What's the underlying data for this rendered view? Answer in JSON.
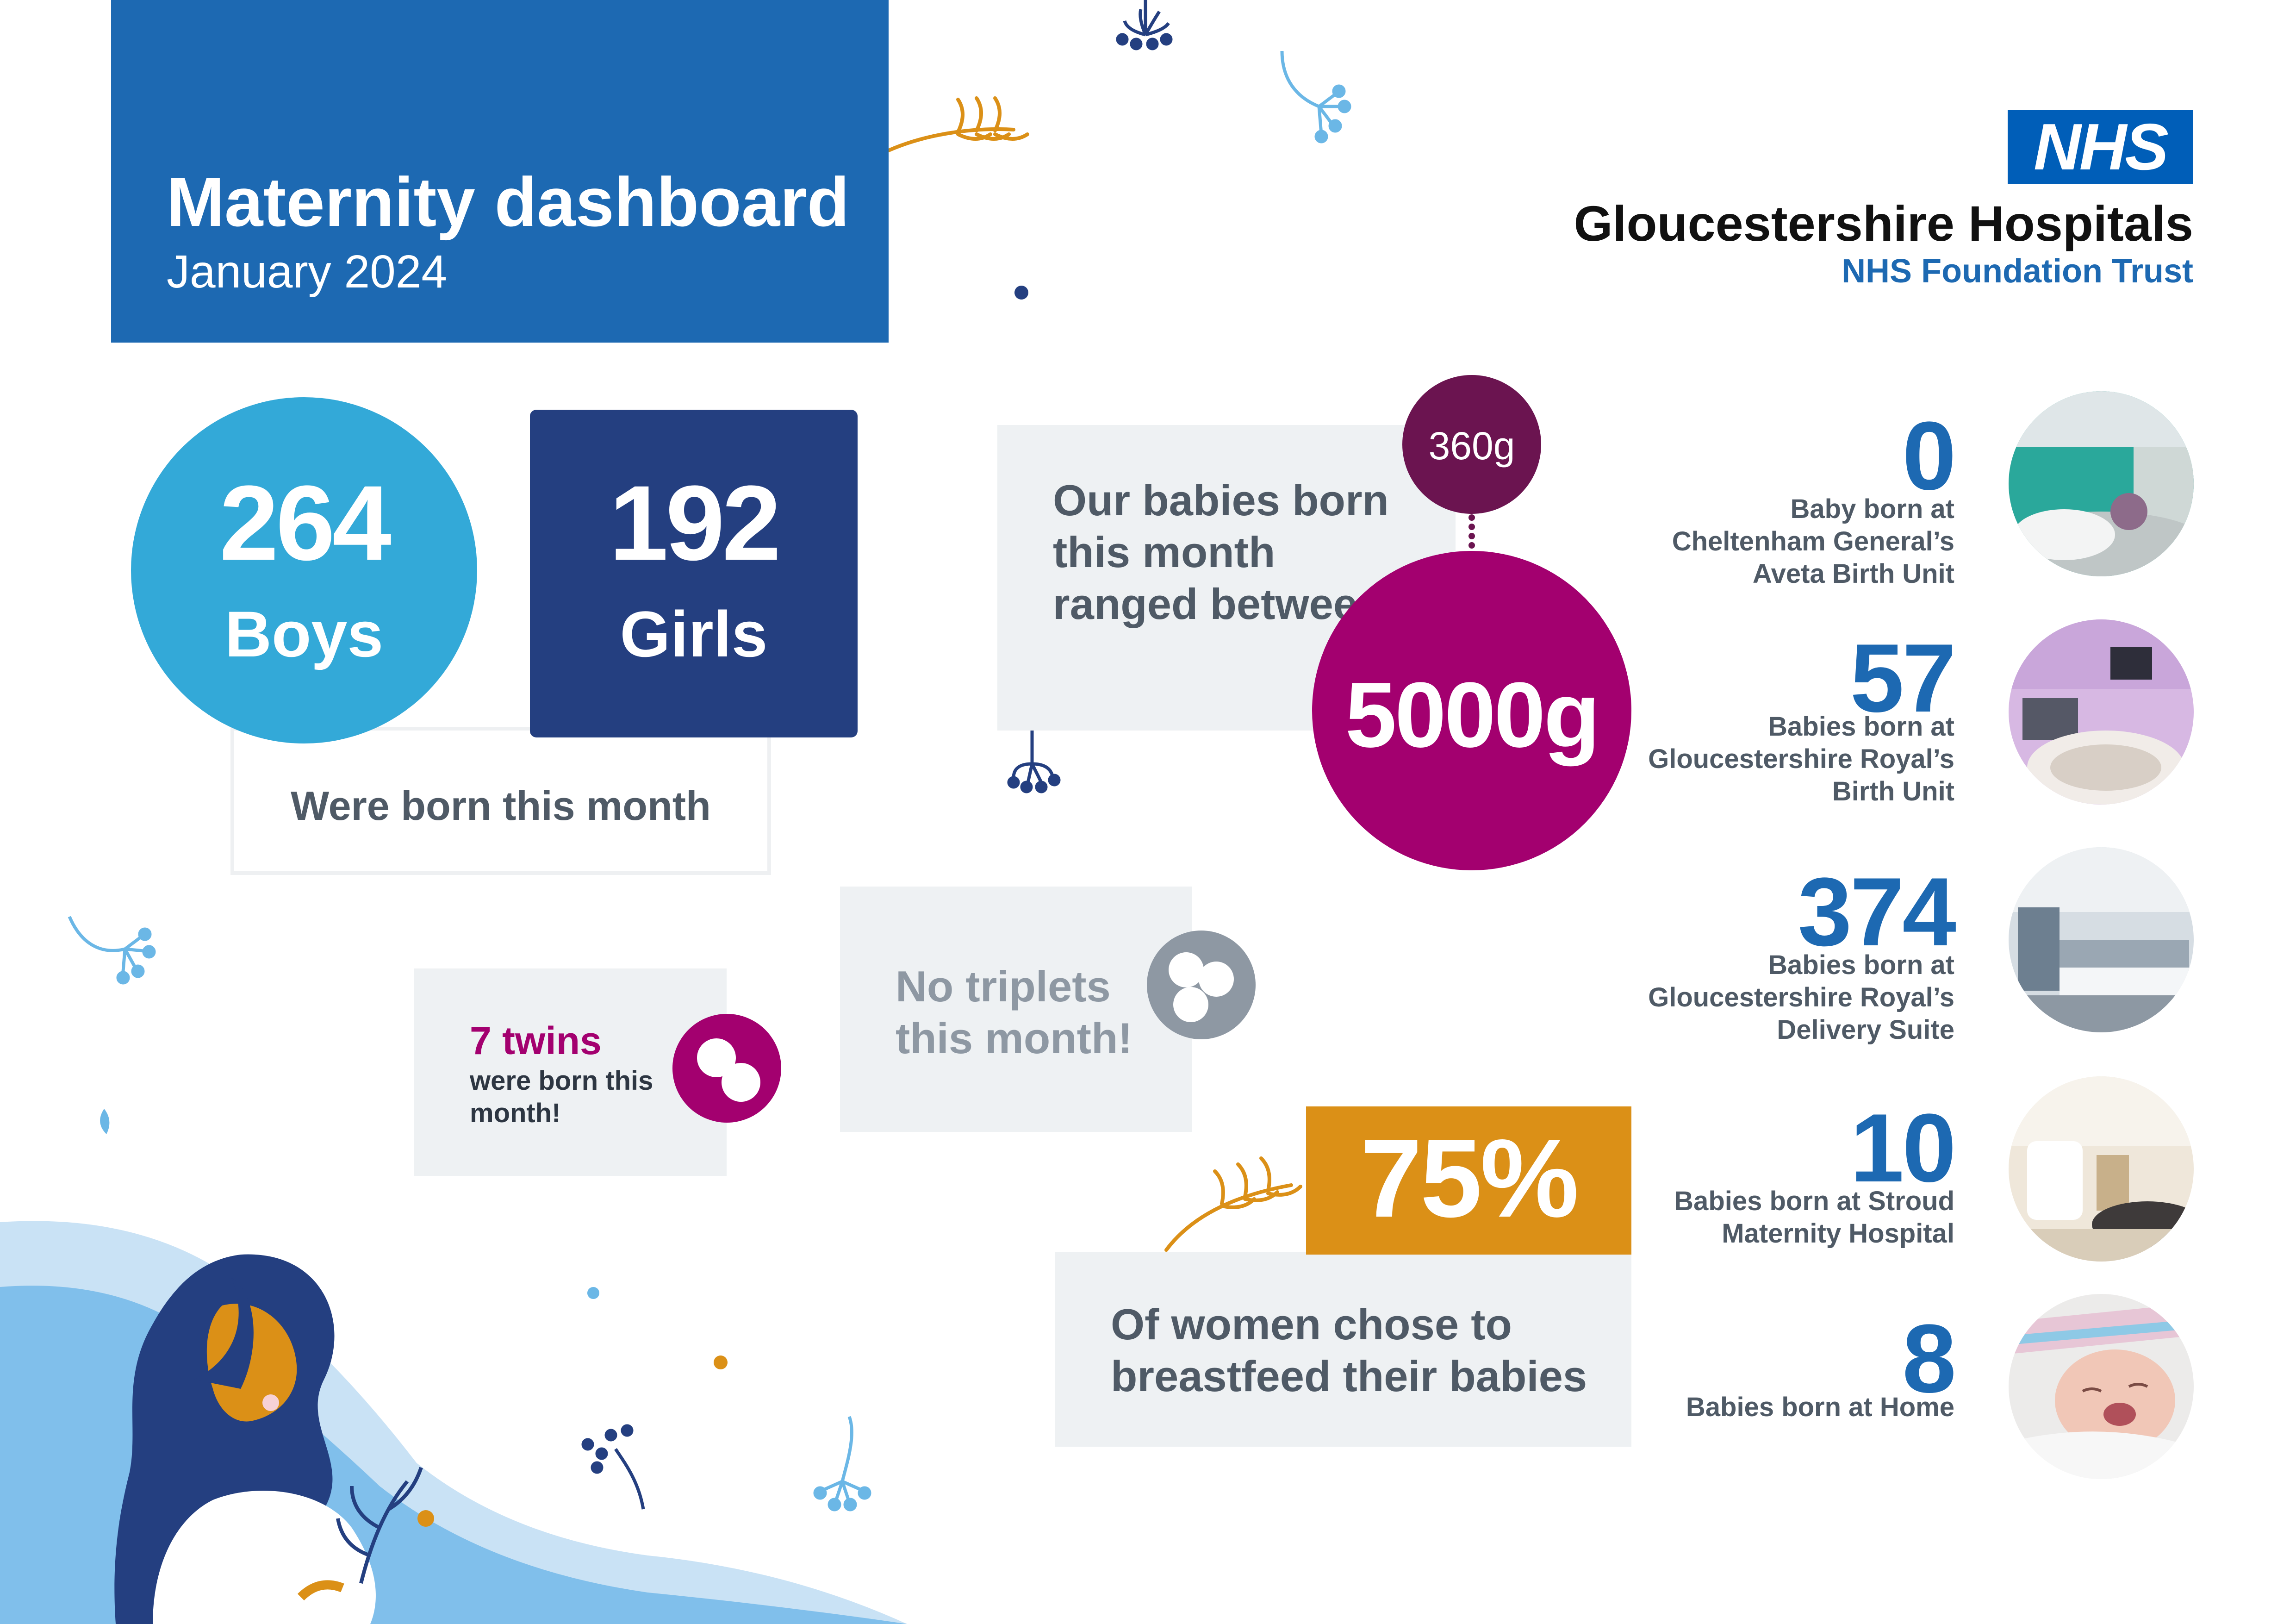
{
  "header": {
    "title": "Maternity dashboard",
    "subtitle": "January 2024"
  },
  "logo": {
    "badge": "NHS",
    "org_name": "Gloucestershire Hospitals",
    "org_sub": "NHS Foundation Trust"
  },
  "births": {
    "boys_count": "264",
    "boys_label": "Boys",
    "girls_count": "192",
    "girls_label": "Girls",
    "caption": "Were born this month"
  },
  "weight": {
    "text": "Our babies born this month ranged between:",
    "min": "360g",
    "max": "5000g"
  },
  "twins": {
    "headline": "7 twins",
    "text": "were born this month!"
  },
  "triplets": {
    "text": "No triplets this month!"
  },
  "breastfeeding": {
    "percent": "75%",
    "text": "Of women chose to breastfeed their babies"
  },
  "locations": [
    {
      "count": "0",
      "text": "Baby born at Cheltenham General’s Aveta Birth Unit"
    },
    {
      "count": "57",
      "text": "Babies born at Gloucestershire Royal’s Birth Unit"
    },
    {
      "count": "374",
      "text": "Babies born at Gloucestershire Royal’s Delivery Suite"
    },
    {
      "count": "10",
      "text": "Babies born at Stroud Maternity Hospital"
    },
    {
      "count": "8",
      "text": "Babies born at Home"
    }
  ],
  "colors": {
    "nhs_blue": "#1d69b2",
    "boys": "#33a9d8",
    "girls": "#243f80",
    "magenta": "#a3006f",
    "plum": "#6b1450",
    "grey": "#8e98a3",
    "orange": "#db9017",
    "panel": "#eef1f3"
  }
}
